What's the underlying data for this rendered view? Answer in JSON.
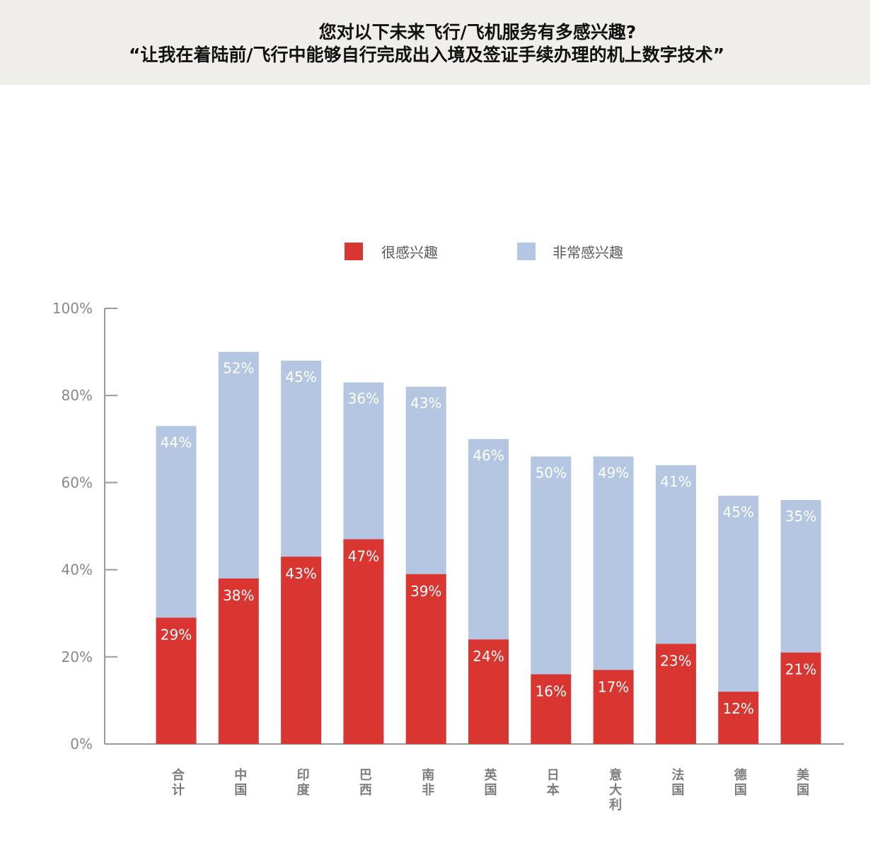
{
  "header": {
    "title_line1": "您对以下未来飞行/飞机服务有多感兴趣?",
    "title_line2": "“让我在着陆前/飞行中能够自行完成出入境及签证手续办理的机上数字技术”"
  },
  "chart_data": {
    "type": "bar",
    "stacked": true,
    "categories": [
      "合计",
      "中国",
      "印度",
      "巴西",
      "南非",
      "英国",
      "日本",
      "意大利",
      "法国",
      "德国",
      "美国"
    ],
    "series": [
      {
        "name": "很感兴趣",
        "color": "#d93632",
        "values": [
          29,
          38,
          43,
          47,
          39,
          24,
          16,
          17,
          23,
          12,
          21
        ],
        "labels": [
          "29%",
          "38%",
          "43%",
          "47%",
          "39%",
          "24%",
          "16%",
          "17%",
          "23%",
          "12%",
          "21%"
        ]
      },
      {
        "name": "非常感兴趣",
        "color": "#b4c6e2",
        "values": [
          44,
          52,
          45,
          36,
          43,
          46,
          50,
          49,
          41,
          45,
          35
        ],
        "labels": [
          "44%",
          "52%",
          "45%",
          "36%",
          "43%",
          "46%",
          "50%",
          "49%",
          "41%",
          "45%",
          "35%"
        ]
      }
    ],
    "ylim": [
      0,
      100
    ],
    "yticks": [
      0,
      20,
      40,
      60,
      80,
      100
    ],
    "ytick_labels": [
      "0%",
      "20%",
      "40%",
      "60%",
      "80%",
      "100%"
    ],
    "legend_position": "top-center",
    "grid": false
  }
}
